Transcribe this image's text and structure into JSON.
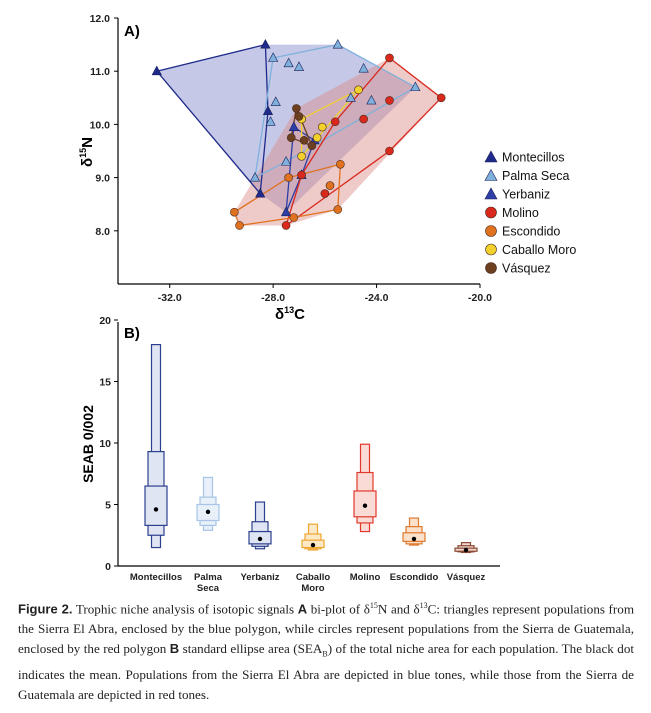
{
  "chart_data": [
    {
      "type": "scatter",
      "panel_label": "A)",
      "xlabel": "δ13C",
      "ylabel": "δ15N",
      "xlim": [
        -34.0,
        -20.0
      ],
      "ylim": [
        7.0,
        12.0
      ],
      "x_ticks": [
        "-32.0",
        "-28.0",
        "-24.0",
        "-20.0"
      ],
      "y_ticks": [
        "12.0",
        "11.0",
        "10.0",
        "9.0",
        "8.0"
      ],
      "legend_position": "right",
      "series": [
        {
          "name": "Montecillos",
          "marker": "triangle",
          "color": "#1f2a8a",
          "points": [
            [
              -32.5,
              11.0
            ],
            [
              -28.3,
              11.5
            ],
            [
              -28.2,
              10.25
            ],
            [
              -28.5,
              8.7
            ]
          ]
        },
        {
          "name": "Palma Seca",
          "marker": "triangle",
          "color": "#7fb1dc",
          "points": [
            [
              -25.5,
              11.5
            ],
            [
              -28.0,
              11.25
            ],
            [
              -27.4,
              11.15
            ],
            [
              -27.0,
              11.08
            ],
            [
              -24.5,
              11.05
            ],
            [
              -22.5,
              10.7
            ],
            [
              -27.9,
              10.42
            ],
            [
              -25.0,
              10.5
            ],
            [
              -24.2,
              10.45
            ],
            [
              -28.1,
              10.05
            ],
            [
              -27.5,
              9.3
            ],
            [
              -28.7,
              9.0
            ]
          ]
        },
        {
          "name": "Yerbaniz",
          "marker": "triangle",
          "color": "#2d3fa6",
          "points": [
            [
              -27.2,
              9.95
            ],
            [
              -26.4,
              9.7
            ],
            [
              -26.9,
              9.05
            ],
            [
              -27.5,
              8.35
            ]
          ]
        },
        {
          "name": "Molino",
          "marker": "circle",
          "color": "#d9281c",
          "points": [
            [
              -23.5,
              11.25
            ],
            [
              -21.5,
              10.5
            ],
            [
              -23.5,
              10.45
            ],
            [
              -24.5,
              10.1
            ],
            [
              -25.6,
              10.05
            ],
            [
              -27.5,
              8.1
            ],
            [
              -23.5,
              9.5
            ],
            [
              -26.9,
              9.05
            ],
            [
              -26.0,
              8.7
            ]
          ]
        },
        {
          "name": "Escondido",
          "marker": "circle",
          "color": "#e0711f",
          "points": [
            [
              -29.5,
              8.35
            ],
            [
              -29.3,
              8.1
            ],
            [
              -27.2,
              8.25
            ],
            [
              -25.5,
              8.4
            ],
            [
              -25.8,
              8.85
            ],
            [
              -25.4,
              9.25
            ],
            [
              -27.4,
              9.0
            ]
          ]
        },
        {
          "name": "Caballo Moro",
          "marker": "circle",
          "color": "#f2d12c",
          "points": [
            [
              -24.7,
              10.65
            ],
            [
              -26.9,
              10.1
            ],
            [
              -26.1,
              9.95
            ],
            [
              -26.3,
              9.75
            ],
            [
              -26.9,
              9.4
            ]
          ]
        },
        {
          "name": "Vásquez",
          "marker": "circle",
          "color": "#6b3f1f",
          "points": [
            [
              -27.1,
              10.3
            ],
            [
              -27.0,
              10.15
            ],
            [
              -27.3,
              9.75
            ],
            [
              -26.8,
              9.7
            ],
            [
              -26.5,
              9.6
            ]
          ]
        }
      ]
    },
    {
      "type": "box",
      "panel_label": "B)",
      "ylabel": "SEAB 0/002",
      "ylim": [
        0,
        20
      ],
      "y_ticks": [
        "0",
        "5",
        "10",
        "15",
        "20"
      ],
      "categories": [
        "Montecillos",
        "Palma Seca",
        "Yerbaniz",
        "Caballo Moro",
        "Molino",
        "Escondido",
        "Vásquez"
      ],
      "series": [
        {
          "name": "Montecillos",
          "color": "#2d3f8f",
          "fill": "#dfe5f3",
          "mean": 4.6,
          "ci95": [
            1.5,
            18.0
          ],
          "ci75": [
            2.5,
            9.3
          ],
          "ci50": [
            3.3,
            6.5
          ]
        },
        {
          "name": "Palma Seca",
          "color": "#a8c4e6",
          "fill": "#e8f0fa",
          "mean": 4.4,
          "ci95": [
            2.9,
            7.2
          ],
          "ci75": [
            3.3,
            5.6
          ],
          "ci50": [
            3.7,
            5.0
          ]
        },
        {
          "name": "Yerbaniz",
          "color": "#2d3f8f",
          "fill": "#dfe5f3",
          "mean": 2.2,
          "ci95": [
            1.4,
            5.2
          ],
          "ci75": [
            1.6,
            3.6
          ],
          "ci50": [
            1.8,
            2.8
          ]
        },
        {
          "name": "Caballo Moro",
          "color": "#f0a531",
          "fill": "#fde9c5",
          "mean": 1.7,
          "ci95": [
            1.3,
            3.4
          ],
          "ci75": [
            1.4,
            2.6
          ],
          "ci50": [
            1.5,
            2.1
          ]
        },
        {
          "name": "Molino",
          "color": "#e0392c",
          "fill": "#fadbd6",
          "mean": 4.9,
          "ci95": [
            2.8,
            9.9
          ],
          "ci75": [
            3.5,
            7.6
          ],
          "ci50": [
            4.0,
            6.1
          ]
        },
        {
          "name": "Escondido",
          "color": "#e07a2f",
          "fill": "#fbe0cb",
          "mean": 2.2,
          "ci95": [
            1.7,
            3.9
          ],
          "ci75": [
            1.8,
            3.2
          ],
          "ci50": [
            2.0,
            2.7
          ]
        },
        {
          "name": "Vásquez",
          "color": "#8a4a34",
          "fill": "#f1d8cf",
          "mean": 1.3,
          "ci95": [
            1.1,
            1.9
          ],
          "ci75": [
            1.15,
            1.65
          ],
          "ci50": [
            1.2,
            1.45
          ]
        }
      ]
    }
  ],
  "panelA": {
    "label": "A)",
    "y_axis_letter": "N",
    "y_axis_sup": "15",
    "y_axis_prefix": "δ",
    "x_axis_letter": "C",
    "x_axis_sup": "13",
    "x_axis_prefix": "δ"
  },
  "panelB": {
    "label": "B)",
    "x_labels": [
      [
        "Montecillos"
      ],
      [
        "Palma",
        "Seca"
      ],
      [
        "Yerbaniz"
      ],
      [
        "Caballo",
        "Moro"
      ],
      [
        "Molino"
      ],
      [
        "Escondido"
      ],
      [
        "Vásquez"
      ]
    ]
  },
  "caption": {
    "lead": "Figure 2.",
    "seg1": " Trophic niche analysis of isotopic signals ",
    "bold_a": "A",
    "seg2": " bi-plot of δ",
    "sup15": "15",
    "seg3": "N and δ",
    "sup13": "13",
    "seg4": "C: triangles represent populations from the Sierra El Abra, enclosed by the blue polygon, while circles represent populations from the Sierra de Guatemala, enclosed by the red polygon ",
    "bold_b": "B",
    "seg5": " standard ellipse area (SEA",
    "sub_b": "B",
    "seg6": ") of the total niche area for each population. The black dot indicates the mean. Populations from the Sierra El Abra are depicted in blue tones, while those from the Sierra de Guatemala are depicted in red tones."
  }
}
